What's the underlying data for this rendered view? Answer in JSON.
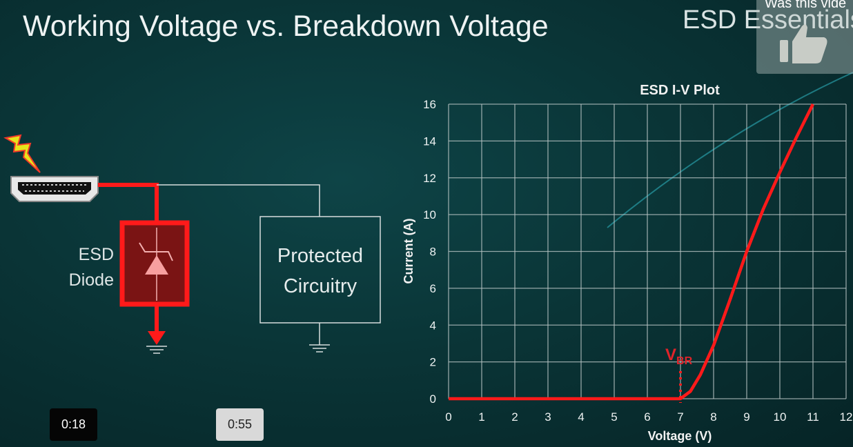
{
  "slide": {
    "title": "Working Voltage vs. Breakdown Voltage",
    "brand": "ESD Essentials",
    "diode_label_line1": "ESD",
    "diode_label_line2": "Diode",
    "protected_line1": "Protected",
    "protected_line2": "Circuitry",
    "vbr_label_main": "V",
    "vbr_label_sub": "BR"
  },
  "video": {
    "timestamp_current": "0:18",
    "timestamp_end": "0:55",
    "feedback_prompt": "Was this vide",
    "feedback_icon": "thumbs-up-icon"
  },
  "colors": {
    "curve": "#ff1a1a",
    "grid": "#b8c4c4",
    "background": "#0a3537"
  },
  "chart_data": {
    "type": "line",
    "title": "ESD I-V Plot",
    "xlabel": "Voltage (V)",
    "ylabel": "Current (A)",
    "xlim": [
      0,
      12
    ],
    "ylim": [
      0,
      16
    ],
    "xticks": [
      "0",
      "1",
      "2",
      "3",
      "4",
      "5",
      "6",
      "7",
      "8",
      "9",
      "10",
      "11",
      "12"
    ],
    "yticks": [
      "0",
      "2",
      "4",
      "6",
      "8",
      "10",
      "12",
      "14",
      "16"
    ],
    "grid": true,
    "series": [
      {
        "x": [
          0,
          7,
          7.3,
          7.6,
          8,
          8.5,
          9,
          9.5,
          10,
          10.5,
          11
        ],
        "y": [
          0,
          0,
          0.4,
          1.3,
          2.9,
          5.4,
          8.0,
          10.3,
          12.3,
          14.2,
          16
        ]
      }
    ],
    "annotations": [
      {
        "text": "VBR",
        "x": 7
      }
    ]
  }
}
